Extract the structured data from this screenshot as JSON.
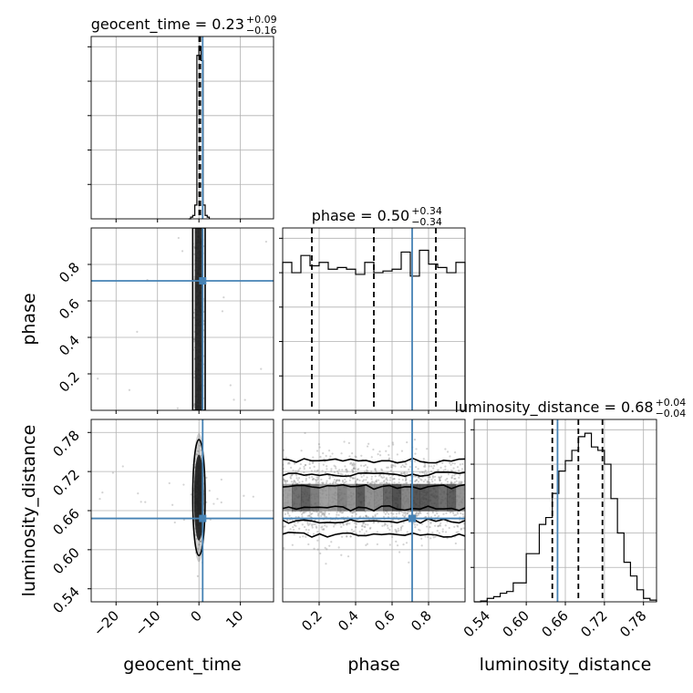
{
  "chart_data": {
    "type": "corner",
    "parameters": [
      {
        "key": "geocent_time",
        "label": "geocent_time",
        "title": {
          "prefix": "geocent_time = 0.23",
          "plus": "+0.09",
          "minus": "−0.16"
        },
        "range": [
          -26,
          18
        ],
        "ticks": [
          -20,
          -10,
          0,
          10
        ],
        "tick_labels": [
          "−20",
          "−10",
          "0",
          "10"
        ],
        "truth": 0.9,
        "median": 0.23,
        "quantiles": [
          0.07,
          0.23,
          0.32
        ],
        "show_quantile_lines": true,
        "hist": {
          "edges": [
            -2.5,
            -2.0,
            -1.5,
            -1.0,
            -0.5,
            0.0,
            0.5,
            1.0,
            1.5,
            2.0,
            2.5
          ],
          "counts": [
            0,
            0.01,
            0.02,
            0.08,
            0.95,
            1.0,
            0.92,
            0.08,
            0.02,
            0.01
          ]
        }
      },
      {
        "key": "phase",
        "label": "phase",
        "title": {
          "prefix": "phase = 0.50",
          "plus": "+0.34",
          "minus": "−0.34"
        },
        "range": [
          0.0,
          1.0
        ],
        "ticks": [
          0.2,
          0.4,
          0.6,
          0.8
        ],
        "tick_labels": [
          "0.2",
          "0.4",
          "0.6",
          "0.8"
        ],
        "truth": 0.71,
        "median": 0.5,
        "quantiles": [
          0.16,
          0.5,
          0.84
        ],
        "show_quantile_lines": true,
        "hist": {
          "edges": [
            0,
            0.05,
            0.1,
            0.15,
            0.2,
            0.25,
            0.3,
            0.35,
            0.4,
            0.45,
            0.5,
            0.55,
            0.6,
            0.65,
            0.7,
            0.75,
            0.8,
            0.85,
            0.9,
            0.95,
            1.0
          ],
          "counts": [
            0.86,
            0.8,
            0.9,
            0.84,
            0.86,
            0.82,
            0.83,
            0.82,
            0.79,
            0.86,
            0.8,
            0.81,
            0.82,
            0.92,
            0.78,
            0.93,
            0.85,
            0.83,
            0.8,
            0.86
          ]
        }
      },
      {
        "key": "luminosity_distance",
        "label": "luminosity_distance",
        "title": {
          "prefix": "luminosity_distance = 0.68",
          "plus": "+0.04",
          "minus": "−0.04"
        },
        "range": [
          0.52,
          0.8
        ],
        "ticks": [
          0.54,
          0.6,
          0.66,
          0.72,
          0.78
        ],
        "tick_labels": [
          "0.54",
          "0.60",
          "0.66",
          "0.72",
          "0.78"
        ],
        "truth": 0.648,
        "median": 0.68,
        "quantiles": [
          0.64,
          0.68,
          0.717
        ],
        "show_quantile_lines": true,
        "hist": {
          "edges": [
            0.52,
            0.53,
            0.54,
            0.55,
            0.56,
            0.57,
            0.58,
            0.59,
            0.6,
            0.61,
            0.62,
            0.63,
            0.64,
            0.65,
            0.66,
            0.67,
            0.68,
            0.69,
            0.7,
            0.71,
            0.72,
            0.73,
            0.74,
            0.75,
            0.76,
            0.77,
            0.78,
            0.79,
            0.8
          ],
          "counts": [
            0,
            0.005,
            0.02,
            0.03,
            0.05,
            0.06,
            0.11,
            0.11,
            0.28,
            0.28,
            0.45,
            0.49,
            0.63,
            0.76,
            0.82,
            0.88,
            0.96,
            0.98,
            0.9,
            0.88,
            0.8,
            0.6,
            0.4,
            0.23,
            0.15,
            0.07,
            0.02,
            0.01
          ]
        }
      }
    ],
    "pairs": [
      {
        "x": "geocent_time",
        "y": "phase",
        "truth": [
          0.9,
          0.71
        ],
        "x_center": 0.0,
        "x_spread": 0.5,
        "y_kind": "uniform"
      },
      {
        "x": "geocent_time",
        "y": "luminosity_distance",
        "truth": [
          0.9,
          0.648
        ],
        "x_center": 0.0,
        "x_spread": 0.5,
        "y_center": 0.68,
        "y_spread": 0.03
      },
      {
        "x": "phase",
        "y": "luminosity_distance",
        "truth": [
          0.71,
          0.648
        ],
        "x_kind": "uniform",
        "y_center": 0.68,
        "y_spread": 0.03
      }
    ],
    "grid": true,
    "colors": {
      "truth": "#4682b4",
      "hist": "#000000",
      "density": "#000000",
      "points": "#808080"
    }
  }
}
